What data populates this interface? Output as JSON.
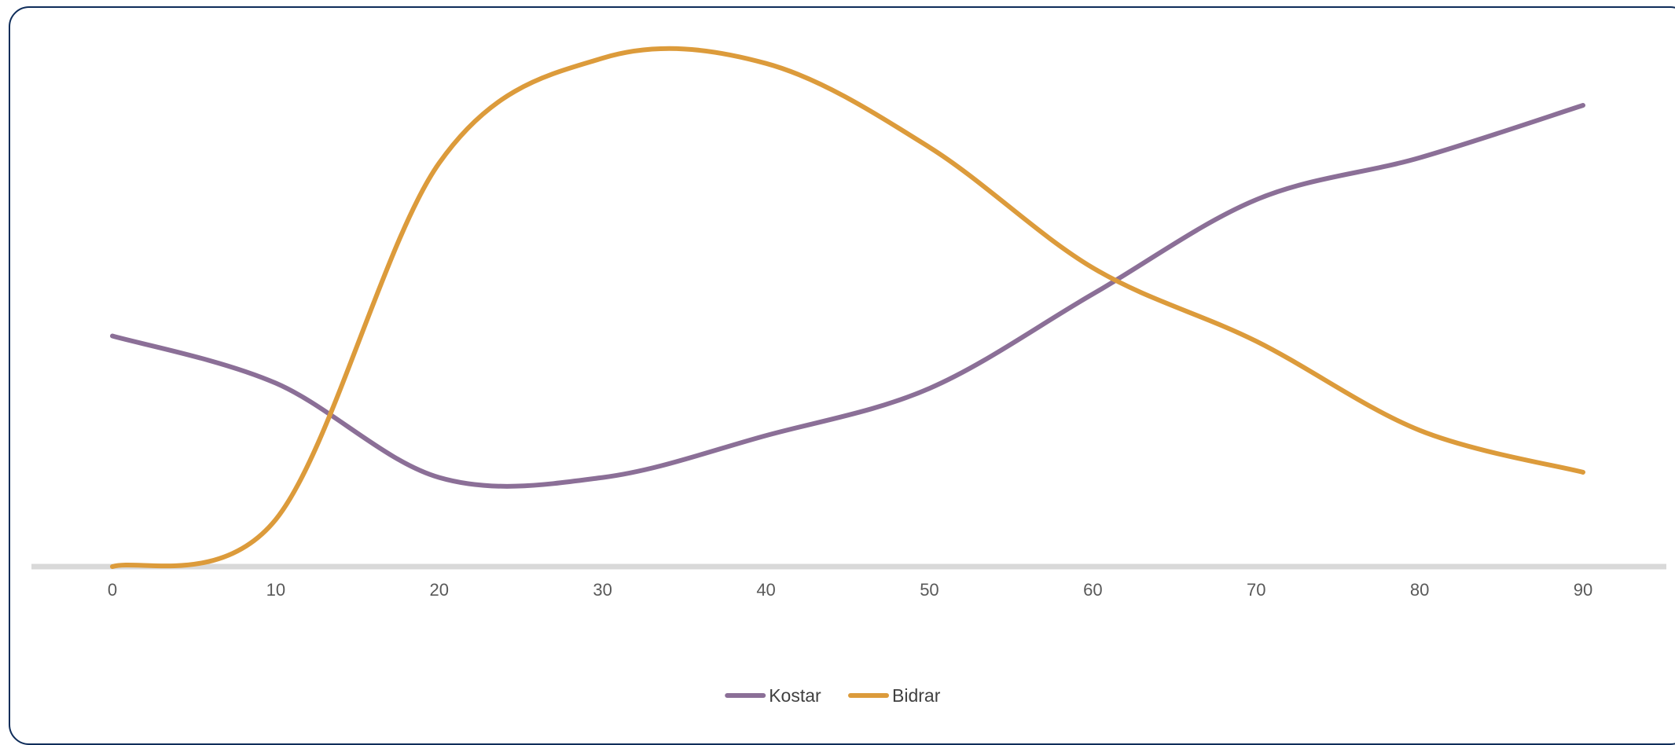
{
  "chart_data": {
    "type": "line",
    "smooth": true,
    "x": [
      0,
      10,
      20,
      30,
      40,
      50,
      60,
      70,
      80,
      90
    ],
    "x_tick_labels": [
      "0",
      "10",
      "20",
      "30",
      "40",
      "50",
      "60",
      "70",
      "80",
      "90"
    ],
    "xlim": [
      -5,
      95
    ],
    "ylim": [
      0,
      100
    ],
    "grid": false,
    "legend_position": "bottom",
    "series": [
      {
        "name": "Kostar",
        "color": "#8b6f97",
        "values": [
          44,
          35,
          17,
          17,
          25,
          34,
          52,
          70,
          78,
          88
        ]
      },
      {
        "name": "Bidrar",
        "color": "#dc9b3b",
        "values": [
          0,
          9,
          77,
          97,
          96,
          80,
          57,
          43,
          26,
          18
        ]
      }
    ],
    "axis_color": "#d9d9d9"
  }
}
